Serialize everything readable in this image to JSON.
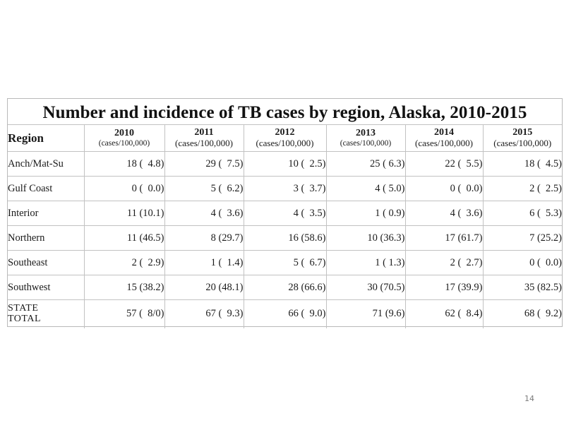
{
  "slide": {
    "page_number": "14"
  },
  "table": {
    "title": "Number and incidence of TB cases by region, Alaska, 2010-2015",
    "region_header": "Region",
    "years": [
      {
        "year": "2010",
        "unit": "(cases/100,000)"
      },
      {
        "year": "2011",
        "unit": "(cases/100,000)"
      },
      {
        "year": "2012",
        "unit": "(cases/100,000)"
      },
      {
        "year": "2013",
        "unit": "(cases/100,000)"
      },
      {
        "year": "2014",
        "unit": "(cases/100,000)"
      },
      {
        "year": "2015",
        "unit": "(cases/100,000)"
      }
    ],
    "rows": [
      {
        "region": "Anch/Mat-Su",
        "values": [
          "18 (  4.8)",
          "29 (  7.5)",
          "10 (  2.5)",
          "25 ( 6.3)",
          "22 (  5.5)",
          "18 (  4.5)"
        ]
      },
      {
        "region": "Gulf Coast",
        "values": [
          "0 (  0.0)",
          "5 (  6.2)",
          "3 (  3.7)",
          "4 ( 5.0)",
          "0 (  0.0)",
          "2 (  2.5)"
        ]
      },
      {
        "region": "Interior",
        "values": [
          "11 (10.1)",
          "4 (  3.6)",
          "4 (  3.5)",
          "1 ( 0.9)",
          "4 (  3.6)",
          "6 (  5.3)"
        ]
      },
      {
        "region": "Northern",
        "values": [
          "11 (46.5)",
          "8 (29.7)",
          "16 (58.6)",
          "10 (36.3)",
          "17 (61.7)",
          "7 (25.2)"
        ]
      },
      {
        "region": "Southeast",
        "values": [
          "2 (  2.9)",
          "1 (  1.4)",
          "5 (  6.7)",
          "1 ( 1.3)",
          "2 (  2.7)",
          "0 (  0.0)"
        ]
      },
      {
        "region": "Southwest",
        "values": [
          "15 (38.2)",
          "20 (48.1)",
          "28 (66.6)",
          "30 (70.5)",
          "17 (39.9)",
          "35 (82.5)"
        ]
      }
    ],
    "total": {
      "region_line1": "STATE",
      "region_line2": "TOTAL",
      "values": [
        "57 (  8/0)",
        "67 (  9.3)",
        "66 (  9.0)",
        "71 (9.6)",
        "62 (  8.4)",
        "68 (  9.2)"
      ]
    }
  }
}
